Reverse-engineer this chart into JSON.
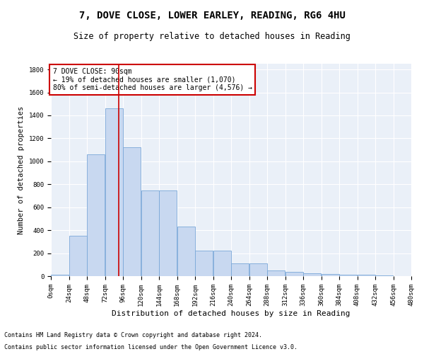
{
  "title_line1": "7, DOVE CLOSE, LOWER EARLEY, READING, RG6 4HU",
  "title_line2": "Size of property relative to detached houses in Reading",
  "xlabel": "Distribution of detached houses by size in Reading",
  "ylabel": "Number of detached properties",
  "footnote1": "Contains HM Land Registry data © Crown copyright and database right 2024.",
  "footnote2": "Contains public sector information licensed under the Open Government Licence v3.0.",
  "annotation_line1": "7 DOVE CLOSE: 90sqm",
  "annotation_line2": "← 19% of detached houses are smaller (1,070)",
  "annotation_line3": "80% of semi-detached houses are larger (4,576) →",
  "bar_edges": [
    0,
    24,
    48,
    72,
    96,
    120,
    144,
    168,
    192,
    216,
    240,
    264,
    288,
    312,
    336,
    360,
    384,
    408,
    432,
    456,
    480
  ],
  "bar_heights": [
    10,
    350,
    1060,
    1460,
    1120,
    745,
    745,
    430,
    220,
    220,
    110,
    110,
    50,
    40,
    25,
    20,
    15,
    10,
    5,
    3
  ],
  "bar_color": "#c8d8f0",
  "bar_edge_color": "#7aa8d8",
  "property_line_x": 90,
  "property_line_color": "#cc0000",
  "ylim": [
    0,
    1850
  ],
  "yticks": [
    0,
    200,
    400,
    600,
    800,
    1000,
    1200,
    1400,
    1600,
    1800
  ],
  "background_color": "#eaf0f8",
  "grid_color": "#ffffff",
  "annotation_box_color": "#ffffff",
  "annotation_box_edge": "#cc0000",
  "title1_fontsize": 10,
  "title2_fontsize": 8.5,
  "xlabel_fontsize": 8,
  "ylabel_fontsize": 7.5,
  "tick_fontsize": 6.5,
  "annotation_fontsize": 7,
  "footnote_fontsize": 6
}
